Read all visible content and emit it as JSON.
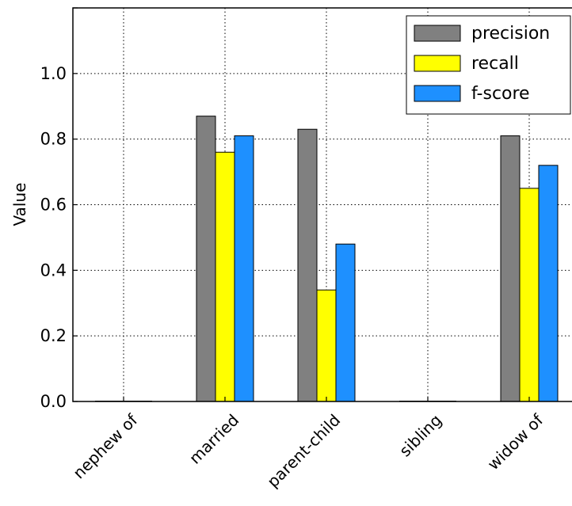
{
  "chart_data": {
    "type": "bar",
    "title": "",
    "xlabel": "",
    "ylabel": "Value",
    "ylim": [
      0,
      1.2
    ],
    "yticks": [
      "0.0",
      "0.2",
      "0.4",
      "0.6",
      "0.8",
      "1.0"
    ],
    "grid": true,
    "legend_position": "top-right",
    "categories": [
      "nephew of",
      "married",
      "parent-child",
      "sibling",
      "widow of"
    ],
    "series": [
      {
        "name": "precision",
        "color": "#808080",
        "values": [
          0.0,
          0.87,
          0.83,
          0.0,
          0.81
        ]
      },
      {
        "name": "recall",
        "color": "#ffff00",
        "values": [
          0.0,
          0.76,
          0.34,
          0.0,
          0.65
        ]
      },
      {
        "name": "f-score",
        "color": "#1e90ff",
        "values": [
          0.0,
          0.81,
          0.48,
          0.0,
          0.72
        ]
      }
    ]
  }
}
